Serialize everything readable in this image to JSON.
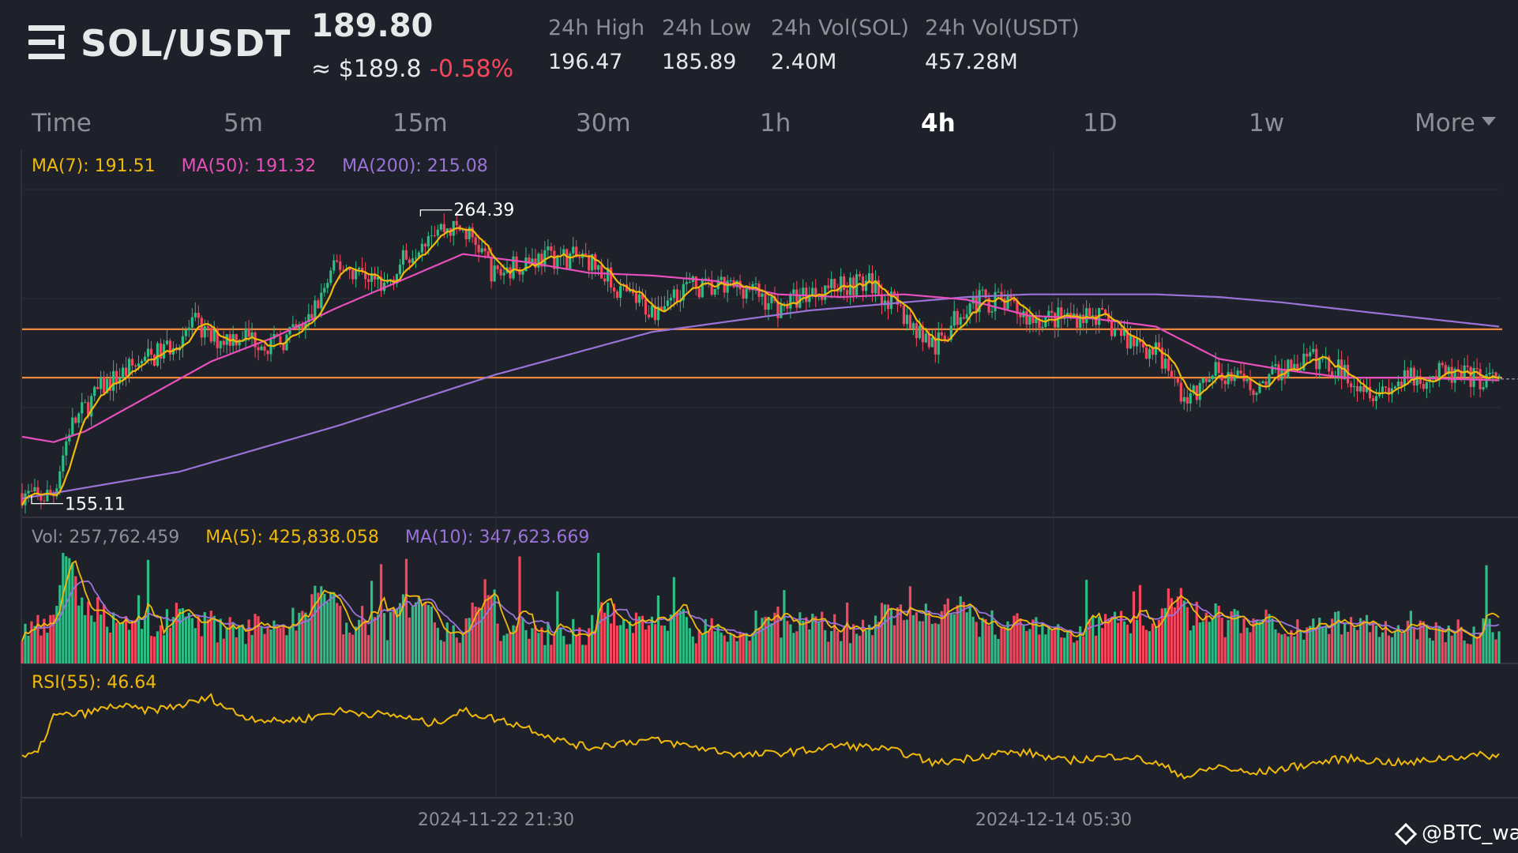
{
  "header": {
    "pair": "SOL/USDT",
    "price": "189.80",
    "approx": "≈ $189.8",
    "change": "-0.58%",
    "stats": [
      {
        "label": "24h High",
        "value": "196.47"
      },
      {
        "label": "24h Low",
        "value": "185.89"
      },
      {
        "label": "24h Vol(SOL)",
        "value": "2.40M"
      },
      {
        "label": "24h Vol(USDT)",
        "value": "457.28M"
      }
    ]
  },
  "tabs": [
    "Time",
    "5m",
    "15m",
    "30m",
    "1h",
    "4h",
    "1D",
    "1w",
    "More"
  ],
  "active_tab": "4h",
  "indicators": {
    "ma7": "MA(7): 191.51",
    "ma50": "MA(50): 191.32",
    "ma200": "MA(200): 215.08",
    "vol": "Vol: 257,762.459",
    "vol_ma5": "MA(5): 425,838.058",
    "vol_ma10": "MA(10): 347,623.669",
    "rsi": "RSI(55): 46.64"
  },
  "chart_data": {
    "type": "line",
    "candles_anchor": [
      [
        0,
        159
      ],
      [
        5,
        157
      ],
      [
        10,
        159
      ],
      [
        15,
        183
      ],
      [
        25,
        198
      ],
      [
        35,
        206
      ],
      [
        45,
        212
      ],
      [
        55,
        222
      ],
      [
        60,
        216
      ],
      [
        70,
        218
      ],
      [
        80,
        214
      ],
      [
        90,
        221
      ],
      [
        100,
        244
      ],
      [
        110,
        240
      ],
      [
        115,
        236
      ],
      [
        120,
        244
      ],
      [
        130,
        258
      ],
      [
        140,
        257
      ],
      [
        145,
        251
      ],
      [
        150,
        240
      ],
      [
        160,
        246
      ],
      [
        170,
        247
      ],
      [
        180,
        246
      ],
      [
        190,
        234
      ],
      [
        200,
        227
      ],
      [
        210,
        236
      ],
      [
        220,
        235
      ],
      [
        230,
        236
      ],
      [
        240,
        228
      ],
      [
        250,
        234
      ],
      [
        260,
        237
      ],
      [
        270,
        237
      ],
      [
        280,
        225
      ],
      [
        290,
        213
      ],
      [
        300,
        230
      ],
      [
        310,
        231
      ],
      [
        320,
        224
      ],
      [
        330,
        224
      ],
      [
        340,
        226
      ],
      [
        350,
        217
      ],
      [
        360,
        212
      ],
      [
        370,
        193
      ],
      [
        380,
        205
      ],
      [
        390,
        198
      ],
      [
        400,
        205
      ],
      [
        410,
        209
      ],
      [
        420,
        204
      ],
      [
        430,
        197
      ],
      [
        440,
        201
      ],
      [
        450,
        203
      ],
      [
        460,
        202
      ],
      [
        469,
        201
      ]
    ],
    "ma50_anchor": [
      [
        0,
        180
      ],
      [
        10,
        178
      ],
      [
        20,
        182
      ],
      [
        40,
        195
      ],
      [
        60,
        208
      ],
      [
        80,
        217
      ],
      [
        100,
        228
      ],
      [
        120,
        238
      ],
      [
        140,
        248
      ],
      [
        160,
        245
      ],
      [
        180,
        241
      ],
      [
        200,
        240
      ],
      [
        220,
        238
      ],
      [
        240,
        233
      ],
      [
        260,
        232
      ],
      [
        280,
        233
      ],
      [
        300,
        231
      ],
      [
        320,
        225
      ],
      [
        340,
        224
      ],
      [
        360,
        221
      ],
      [
        380,
        209
      ],
      [
        400,
        205
      ],
      [
        420,
        202
      ],
      [
        440,
        202
      ],
      [
        469,
        201
      ]
    ],
    "ma200_anchor": [
      [
        0,
        157
      ],
      [
        50,
        167
      ],
      [
        100,
        184
      ],
      [
        150,
        203
      ],
      [
        200,
        219
      ],
      [
        250,
        227
      ],
      [
        280,
        230
      ],
      [
        300,
        232
      ],
      [
        320,
        233
      ],
      [
        360,
        233
      ],
      [
        380,
        232
      ],
      [
        400,
        230
      ],
      [
        430,
        226
      ],
      [
        469,
        221
      ]
    ],
    "rsi_anchor": [
      [
        0,
        45
      ],
      [
        5,
        47
      ],
      [
        10,
        61
      ],
      [
        20,
        62
      ],
      [
        30,
        65
      ],
      [
        40,
        63
      ],
      [
        50,
        65
      ],
      [
        60,
        68
      ],
      [
        65,
        64
      ],
      [
        70,
        61
      ],
      [
        80,
        59
      ],
      [
        90,
        60
      ],
      [
        100,
        63
      ],
      [
        110,
        62
      ],
      [
        120,
        61
      ],
      [
        130,
        58
      ],
      [
        140,
        63
      ],
      [
        150,
        60
      ],
      [
        160,
        57
      ],
      [
        170,
        52
      ],
      [
        180,
        49
      ],
      [
        190,
        51
      ],
      [
        200,
        52
      ],
      [
        210,
        50
      ],
      [
        220,
        48
      ],
      [
        230,
        46
      ],
      [
        240,
        47
      ],
      [
        250,
        48
      ],
      [
        260,
        50
      ],
      [
        270,
        49
      ],
      [
        280,
        47
      ],
      [
        290,
        43
      ],
      [
        300,
        45
      ],
      [
        310,
        47
      ],
      [
        320,
        47
      ],
      [
        330,
        44
      ],
      [
        340,
        45
      ],
      [
        350,
        46
      ],
      [
        360,
        43
      ],
      [
        370,
        38
      ],
      [
        380,
        42
      ],
      [
        390,
        39
      ],
      [
        400,
        41
      ],
      [
        410,
        43
      ],
      [
        420,
        45
      ],
      [
        430,
        44
      ],
      [
        440,
        43
      ],
      [
        450,
        45
      ],
      [
        460,
        46
      ],
      [
        469,
        46
      ]
    ],
    "y_range": [
      150,
      272
    ],
    "rsi_range": [
      30,
      72
    ],
    "high_label": "264.39",
    "high_value": 264.39,
    "low_label": "155.11",
    "low_value": 155.11,
    "horizontal_lines": [
      220,
      202
    ],
    "x_labels": [
      "2024-11-22 21:30",
      "2024-12-14 05:30"
    ],
    "colors": {
      "up": "#2ebd85",
      "down": "#f6465d",
      "ma7": "#f0b90b",
      "ma50": "#e84fbe",
      "ma200": "#9a73d8",
      "vol_ma10": "#9a73d8",
      "rsi": "#f0b90b",
      "level": "#f0883a",
      "grid": "#2b2f37"
    }
  },
  "watermark": "@BTC_wall"
}
